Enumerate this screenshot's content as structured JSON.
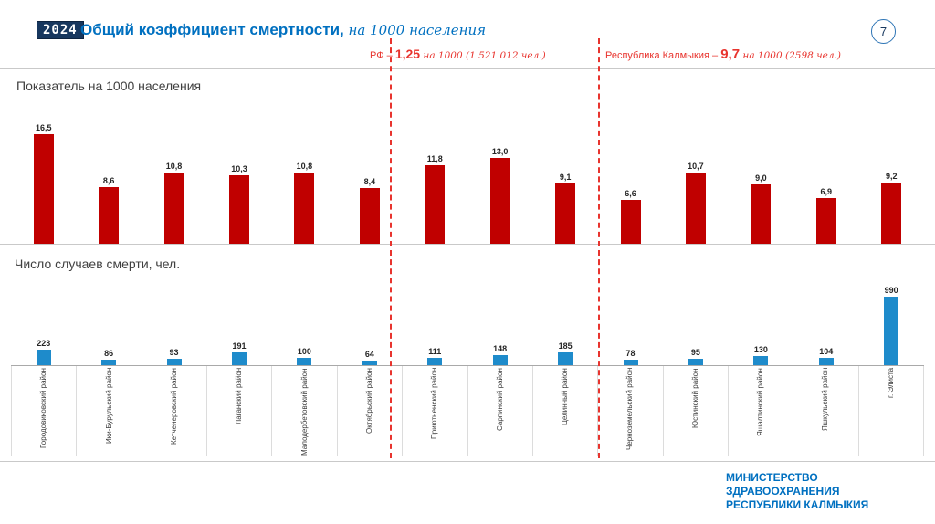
{
  "header": {
    "year_badge": "2024",
    "title": "Общий коэффициент смертности,",
    "title_suffix": " на 1000 населения",
    "page_number": "7"
  },
  "benchmarks": {
    "rf": {
      "prefix": "РФ – ",
      "value": "1,25",
      "suffix": " на 1000 (1 521 012 чел.)"
    },
    "rk": {
      "prefix": "Республика Калмыкия – ",
      "value": "9,7",
      "suffix": " на 1000 (2598 чел.)"
    }
  },
  "chart_data": [
    {
      "type": "bar",
      "title": "Показатель на 1000 населения",
      "categories": [
        "Городовиковский район",
        "Ики-Бурульский район",
        "Кетченеровский район",
        "Лаганский район",
        "Малодербетовский район",
        "Октябрьский район",
        "Приютненский район",
        "Сарпинский район",
        "Целинный район",
        "Черноземельский район",
        "Юстинский район",
        "Яшалтинский район",
        "Яшкульский район",
        "г. Элиста"
      ],
      "values": [
        16.5,
        8.6,
        10.8,
        10.3,
        10.8,
        8.4,
        11.8,
        13.0,
        9.1,
        6.6,
        10.7,
        9.0,
        6.9,
        9.2
      ],
      "labels": [
        "16,5",
        "8,6",
        "10,8",
        "10,3",
        "10,8",
        "8,4",
        "11,8",
        "13,0",
        "9,1",
        "6,6",
        "10,7",
        "9,0",
        "6,9",
        "9,2"
      ],
      "bar_color": "#C00000",
      "xlabel": "",
      "ylabel": "",
      "ylim": [
        0,
        17
      ],
      "grid": false,
      "legend": "none"
    },
    {
      "type": "bar",
      "title": "Число случаев смерти, чел.",
      "categories": [
        "Городовиковский район",
        "Ики-Бурульский район",
        "Кетченеровский район",
        "Лаганский район",
        "Малодербетовский район",
        "Октябрьский район",
        "Приютненский район",
        "Сарпинский район",
        "Целинный район",
        "Черноземельский район",
        "Юстинский район",
        "Яшалтинский район",
        "Яшкульский район",
        "г. Элиста"
      ],
      "values": [
        223,
        86,
        93,
        191,
        100,
        64,
        111,
        148,
        185,
        78,
        95,
        130,
        104,
        990
      ],
      "labels": [
        "223",
        "86",
        "93",
        "191",
        "100",
        "64",
        "111",
        "148",
        "185",
        "78",
        "95",
        "130",
        "104",
        "990"
      ],
      "bar_color": "#1E8BCB",
      "xlabel": "",
      "ylabel": "",
      "ylim": [
        0,
        1000
      ],
      "grid": false,
      "legend": "none"
    }
  ],
  "footer": {
    "ministry_lines": [
      "МИНИСТЕРСТВО",
      "ЗДРАВООХРАНЕНИЯ",
      "РЕСПУБЛИКИ КАЛМЫКИЯ"
    ]
  }
}
